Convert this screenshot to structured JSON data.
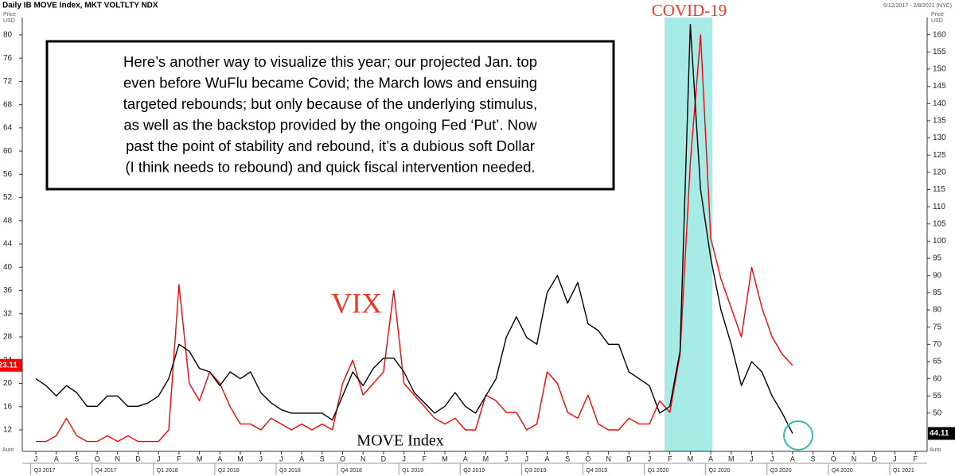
{
  "chart_data": {
    "type": "line",
    "title": "Daily IB MOVE Index, MKT VOLTLTY NDX",
    "date_range": "6/12/2017 - 2/8/2021 (NYC)",
    "y_label_lines": [
      "Price",
      "USD"
    ],
    "y2_label_lines": [
      "Price",
      "USD"
    ],
    "axis_note": "Auto",
    "annotations": {
      "covid": "COVID-19",
      "vix": "VIX",
      "move": "MOVE Index"
    },
    "note_lines": [
      "Here’s another way to visualize this year; our projected Jan. top",
      "even before WuFlu became Covid; the March lows and ensuing",
      "targeted rebounds; but only because of the underlying stimulus,",
      "as well as the backstop provided by the ongoing Fed ‘Put’. Now",
      "past the point of stability and rebound, it’s a dubious soft Dollar",
      "(I think needs to rebound) and quick fiscal intervention needed."
    ],
    "categories": [
      "J",
      null,
      "A",
      null,
      "S",
      null,
      "O",
      null,
      "N",
      null,
      "D",
      null,
      "J",
      null,
      "F",
      null,
      "M",
      null,
      "A",
      null,
      "M",
      null,
      "J",
      null,
      "J",
      null,
      "A",
      null,
      "S",
      null,
      "O",
      null,
      "N",
      null,
      "D",
      null,
      "J",
      null,
      "F",
      null,
      "M",
      null,
      "A",
      null,
      "M",
      null,
      "J",
      null,
      "J",
      null,
      "A",
      null,
      "S",
      null,
      "O",
      null,
      "N",
      null,
      "D",
      null,
      "J",
      null,
      "F",
      null,
      "M",
      null,
      "A",
      null,
      "M",
      null,
      "J",
      null,
      "J",
      null,
      "A",
      null,
      "S",
      null,
      "O",
      null,
      "N",
      null,
      "D",
      null,
      "J",
      null,
      "F",
      null
    ],
    "quarters": [
      "Q3 2017",
      "Q4 2017",
      "Q1 2018",
      "Q2 2018",
      "Q3 2018",
      "Q4 2018",
      "Q1 2019",
      "Q2 2019",
      "Q3 2019",
      "Q4 2019",
      "Q1 2020",
      "Q2 2020",
      "Q3 2020",
      "Q4 2020",
      "Q1 2021"
    ],
    "series": [
      {
        "name": "VIX",
        "color": "#ff0000",
        "axis": "y",
        "values": [
          10,
          10,
          11,
          14,
          11,
          10,
          10,
          11,
          10,
          11,
          10,
          10,
          10,
          12,
          37,
          20,
          17,
          22,
          20,
          16,
          13,
          13,
          12,
          14,
          13,
          12,
          13,
          12,
          13,
          12,
          20,
          24,
          18,
          20,
          22,
          36,
          20,
          18,
          16,
          14,
          13,
          14,
          12,
          12,
          18,
          17,
          15,
          15,
          12,
          13,
          22,
          20,
          15,
          14,
          18,
          13,
          12,
          12,
          14,
          13,
          13,
          17,
          15,
          25,
          58,
          80,
          45,
          38,
          33,
          28,
          40,
          33,
          28,
          25,
          23.11,
          null,
          null,
          null,
          null,
          null,
          null,
          null,
          null,
          null,
          null,
          null,
          null,
          null
        ]
      },
      {
        "name": "MOVE Index",
        "color": "#000000",
        "axis": "y2",
        "values": [
          60,
          58,
          55,
          58,
          56,
          52,
          52,
          55,
          55,
          52,
          52,
          53,
          55,
          60,
          70,
          68,
          63,
          62,
          58,
          62,
          60,
          62,
          56,
          53,
          51,
          50,
          50,
          50,
          50,
          48,
          55,
          62,
          58,
          63,
          66,
          66,
          62,
          56,
          53,
          50,
          52,
          56,
          52,
          50,
          55,
          60,
          72,
          78,
          72,
          70,
          85,
          90,
          82,
          88,
          76,
          74,
          70,
          70,
          62,
          60,
          58,
          50,
          52,
          68,
          163,
          115,
          95,
          80,
          70,
          58,
          65,
          62,
          55,
          50,
          44.11,
          null,
          null,
          null,
          null,
          null,
          null,
          null,
          null,
          null,
          null,
          null,
          null,
          null
        ]
      }
    ],
    "ylim": [
      8.3,
      83
    ],
    "yticks": [
      12,
      16,
      20,
      24,
      28,
      32,
      36,
      40,
      44,
      48,
      52,
      56,
      60,
      64,
      68,
      72,
      76,
      80
    ],
    "y2lim": [
      38.9,
      165
    ],
    "y2ticks": [
      50,
      55,
      60,
      65,
      70,
      75,
      80,
      85,
      90,
      95,
      100,
      105,
      110,
      115,
      120,
      125,
      130,
      135,
      140,
      145,
      150,
      155,
      160
    ]
  }
}
